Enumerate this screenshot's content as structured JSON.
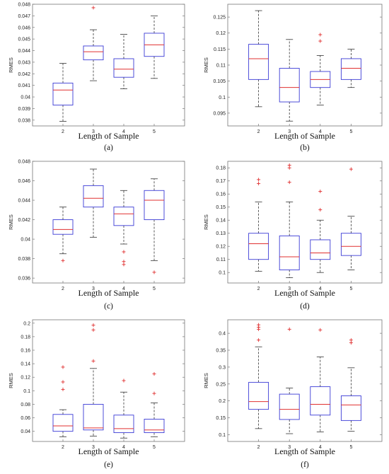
{
  "chart_data": [
    {
      "type": "box",
      "panel": "(a)",
      "xlabel": "Length of Sample",
      "ylabel": "RMES",
      "categories": [
        "2",
        "3",
        "4",
        "5"
      ],
      "ylim": [
        0.0375,
        0.048
      ],
      "yticks": [
        "0.038",
        "0.039",
        "0.04",
        "0.041",
        "0.042",
        "0.043",
        "0.044",
        "0.045",
        "0.046",
        "0.047",
        "0.048"
      ],
      "ytick_values": [
        0.038,
        0.039,
        0.04,
        0.041,
        0.042,
        0.043,
        0.044,
        0.045,
        0.046,
        0.047,
        0.048
      ],
      "boxes": [
        {
          "whisker_low": 0.0379,
          "q1": 0.0393,
          "median": 0.0406,
          "q3": 0.0412,
          "whisker_high": 0.0429,
          "outliers": []
        },
        {
          "whisker_low": 0.0414,
          "q1": 0.0432,
          "median": 0.0439,
          "q3": 0.0444,
          "whisker_high": 0.0458,
          "outliers": [
            0.0477
          ]
        },
        {
          "whisker_low": 0.0407,
          "q1": 0.0417,
          "median": 0.0424,
          "q3": 0.0433,
          "whisker_high": 0.0454,
          "outliers": []
        },
        {
          "whisker_low": 0.0416,
          "q1": 0.0435,
          "median": 0.0445,
          "q3": 0.0455,
          "whisker_high": 0.047,
          "outliers": []
        }
      ]
    },
    {
      "type": "box",
      "panel": "(b)",
      "xlabel": "Length of Sample",
      "ylabel": "RMES",
      "categories": [
        "2",
        "3",
        "4",
        "5"
      ],
      "ylim": [
        0.091,
        0.129
      ],
      "yticks": [
        "0.095",
        "0.1",
        "0.105",
        "0.11",
        "0.115",
        "0.12",
        "0.125"
      ],
      "ytick_values": [
        0.095,
        0.1,
        0.105,
        0.11,
        0.115,
        0.12,
        0.125
      ],
      "boxes": [
        {
          "whisker_low": 0.097,
          "q1": 0.1055,
          "median": 0.112,
          "q3": 0.1165,
          "whisker_high": 0.127,
          "outliers": []
        },
        {
          "whisker_low": 0.0925,
          "q1": 0.0985,
          "median": 0.103,
          "q3": 0.109,
          "whisker_high": 0.118,
          "outliers": []
        },
        {
          "whisker_low": 0.0975,
          "q1": 0.103,
          "median": 0.1055,
          "q3": 0.108,
          "whisker_high": 0.113,
          "outliers": [
            0.1195,
            0.1175
          ]
        },
        {
          "whisker_low": 0.103,
          "q1": 0.1055,
          "median": 0.109,
          "q3": 0.112,
          "whisker_high": 0.115,
          "outliers": []
        }
      ]
    },
    {
      "type": "box",
      "panel": "(c)",
      "xlabel": "Length of Sample",
      "ylabel": "RMES",
      "categories": [
        "2",
        "3",
        "4",
        "5"
      ],
      "ylim": [
        0.0355,
        0.048
      ],
      "yticks": [
        "0.036",
        "0.038",
        "0.04",
        "0.042",
        "0.044",
        "0.046",
        "0.048"
      ],
      "ytick_values": [
        0.036,
        0.038,
        0.04,
        0.042,
        0.044,
        0.046,
        0.048
      ],
      "boxes": [
        {
          "whisker_low": 0.0385,
          "q1": 0.0405,
          "median": 0.041,
          "q3": 0.042,
          "whisker_high": 0.0433,
          "outliers": [
            0.0378
          ]
        },
        {
          "whisker_low": 0.0402,
          "q1": 0.0433,
          "median": 0.0442,
          "q3": 0.0455,
          "whisker_high": 0.0472,
          "outliers": []
        },
        {
          "whisker_low": 0.0395,
          "q1": 0.0414,
          "median": 0.0426,
          "q3": 0.0433,
          "whisker_high": 0.045,
          "outliers": [
            0.0387,
            0.0377,
            0.0374
          ]
        },
        {
          "whisker_low": 0.0378,
          "q1": 0.042,
          "median": 0.044,
          "q3": 0.045,
          "whisker_high": 0.0462,
          "outliers": [
            0.0366
          ]
        }
      ]
    },
    {
      "type": "box",
      "panel": "(d)",
      "xlabel": "Length of Sample",
      "ylabel": "RMES",
      "categories": [
        "2",
        "3",
        "4",
        "5"
      ],
      "ylim": [
        0.092,
        0.185
      ],
      "yticks": [
        "0.1",
        "0.11",
        "0.12",
        "0.13",
        "0.14",
        "0.15",
        "0.16",
        "0.17",
        "0.18"
      ],
      "ytick_values": [
        0.1,
        0.11,
        0.12,
        0.13,
        0.14,
        0.15,
        0.16,
        0.17,
        0.18
      ],
      "boxes": [
        {
          "whisker_low": 0.101,
          "q1": 0.11,
          "median": 0.122,
          "q3": 0.13,
          "whisker_high": 0.154,
          "outliers": [
            0.171,
            0.168
          ]
        },
        {
          "whisker_low": 0.096,
          "q1": 0.102,
          "median": 0.112,
          "q3": 0.128,
          "whisker_high": 0.154,
          "outliers": [
            0.182,
            0.18,
            0.169
          ]
        },
        {
          "whisker_low": 0.1,
          "q1": 0.11,
          "median": 0.115,
          "q3": 0.125,
          "whisker_high": 0.14,
          "outliers": [
            0.162,
            0.148
          ]
        },
        {
          "whisker_low": 0.102,
          "q1": 0.113,
          "median": 0.12,
          "q3": 0.13,
          "whisker_high": 0.143,
          "outliers": [
            0.179
          ]
        }
      ]
    },
    {
      "type": "box",
      "panel": "(e)",
      "xlabel": "Length of Sample",
      "ylabel": "RMES",
      "categories": [
        "2",
        "3",
        "4",
        "5"
      ],
      "ylim": [
        0.025,
        0.205
      ],
      "yticks": [
        "0.04",
        "0.06",
        "0.08",
        "0.1",
        "0.12",
        "0.14",
        "0.16",
        "0.18",
        "0.2"
      ],
      "ytick_values": [
        0.04,
        0.06,
        0.08,
        0.1,
        0.12,
        0.14,
        0.16,
        0.18,
        0.2
      ],
      "boxes": [
        {
          "whisker_low": 0.032,
          "q1": 0.04,
          "median": 0.048,
          "q3": 0.065,
          "whisker_high": 0.072,
          "outliers": [
            0.135,
            0.113,
            0.102
          ]
        },
        {
          "whisker_low": 0.033,
          "q1": 0.042,
          "median": 0.045,
          "q3": 0.08,
          "whisker_high": 0.133,
          "outliers": [
            0.197,
            0.19,
            0.144
          ]
        },
        {
          "whisker_low": 0.03,
          "q1": 0.038,
          "median": 0.044,
          "q3": 0.064,
          "whisker_high": 0.098,
          "outliers": [
            0.115
          ]
        },
        {
          "whisker_low": 0.032,
          "q1": 0.038,
          "median": 0.042,
          "q3": 0.058,
          "whisker_high": 0.082,
          "outliers": [
            0.125,
            0.096
          ]
        }
      ]
    },
    {
      "type": "box",
      "panel": "(f)",
      "xlabel": "Length of Sample",
      "ylabel": "RMES",
      "categories": [
        "2",
        "3",
        "4",
        "5"
      ],
      "ylim": [
        0.08,
        0.44
      ],
      "yticks": [
        "0.1",
        "0.15",
        "0.2",
        "0.25",
        "0.3",
        "0.35",
        "0.4"
      ],
      "ytick_values": [
        0.1,
        0.15,
        0.2,
        0.25,
        0.3,
        0.35,
        0.4
      ],
      "boxes": [
        {
          "whisker_low": 0.118,
          "q1": 0.175,
          "median": 0.198,
          "q3": 0.255,
          "whisker_high": 0.36,
          "outliers": [
            0.425,
            0.418,
            0.412,
            0.38
          ]
        },
        {
          "whisker_low": 0.103,
          "q1": 0.145,
          "median": 0.175,
          "q3": 0.22,
          "whisker_high": 0.238,
          "outliers": [
            0.412
          ]
        },
        {
          "whisker_low": 0.108,
          "q1": 0.158,
          "median": 0.19,
          "q3": 0.242,
          "whisker_high": 0.33,
          "outliers": [
            0.41
          ]
        },
        {
          "whisker_low": 0.11,
          "q1": 0.142,
          "median": 0.188,
          "q3": 0.215,
          "whisker_high": 0.298,
          "outliers": [
            0.38,
            0.372
          ]
        }
      ]
    }
  ],
  "colors": {
    "box": "#3b3bd6",
    "median": "#e03030",
    "whisker": "#333333",
    "outlier": "#e03030",
    "axis": "#777777"
  }
}
